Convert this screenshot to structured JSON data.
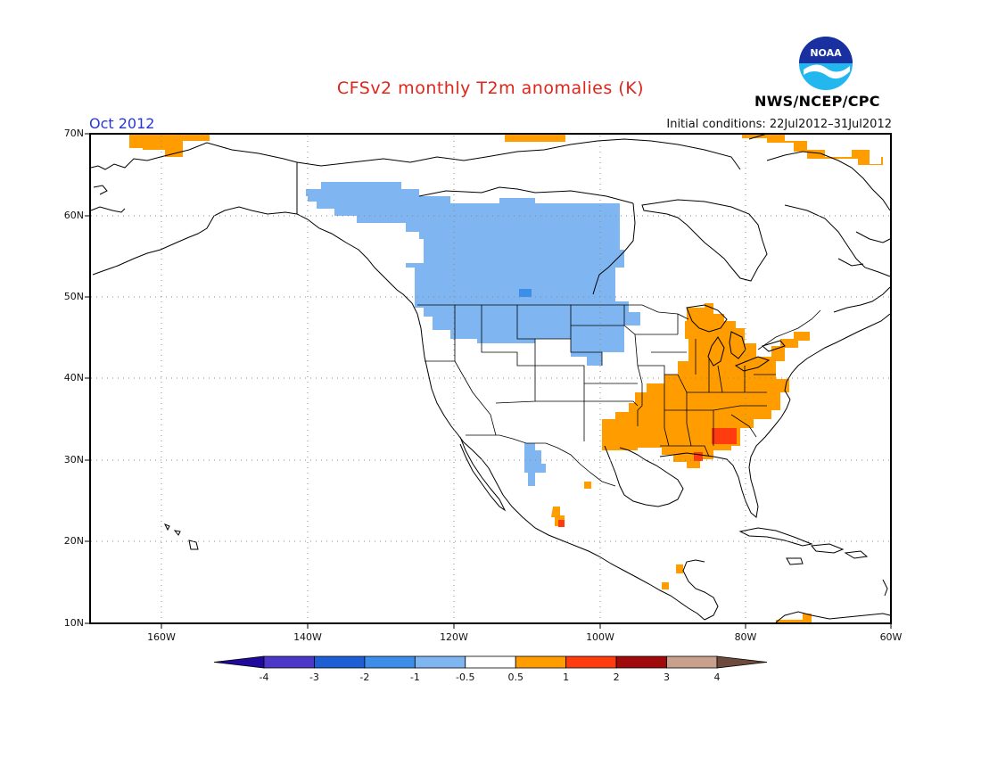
{
  "title": "CFSv2 monthly T2m anomalies (K)",
  "month": "Oct 2012",
  "initial_conditions": "Initial conditions: 22Jul2012–31Jul2012",
  "org": "NWS/NCEP/CPC",
  "logo_text": "NOAA",
  "lat_labels": [
    "70N",
    "60N",
    "50N",
    "40N",
    "30N",
    "20N",
    "10N"
  ],
  "lon_labels": [
    "160W",
    "140W",
    "120W",
    "100W",
    "80W",
    "60W"
  ],
  "colorbar": {
    "labels": [
      "-4",
      "-3",
      "-2",
      "-1",
      "-0.5",
      "0.5",
      "1",
      "2",
      "3",
      "4"
    ],
    "colors": [
      "#1f0a9c",
      "#4b37c8",
      "#1e5fd6",
      "#3c8ee8",
      "#7fb6f2",
      "#ffffff",
      "#ff9c00",
      "#ff3c10",
      "#a10a0a",
      "#c8a08c",
      "#6e4a3c"
    ]
  },
  "colors": {
    "map_frame": "#000000",
    "grid": "#888888",
    "title": "#e0251b",
    "month": "#2a35d8"
  }
}
